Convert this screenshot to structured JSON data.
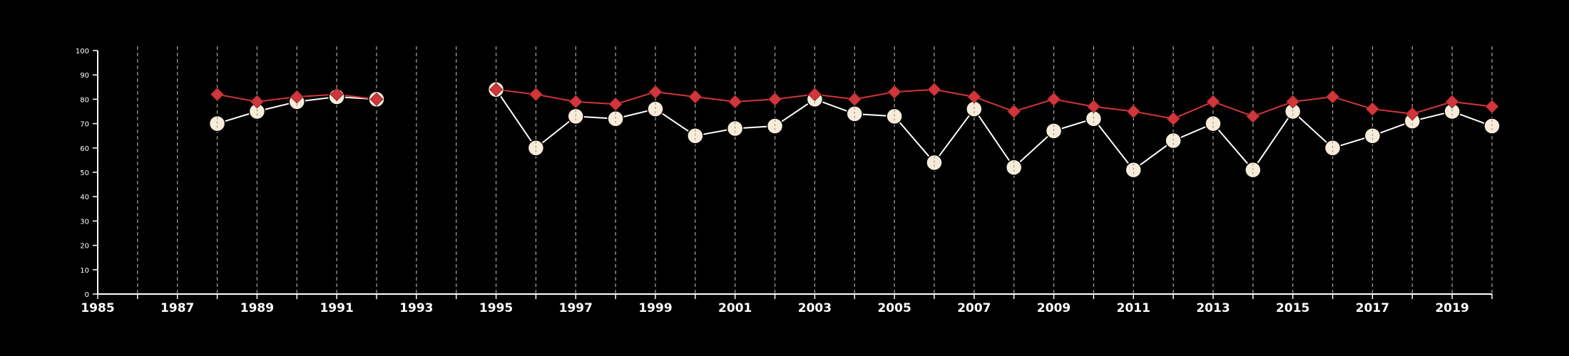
{
  "chart_data": {
    "type": "line",
    "title": "",
    "xlabel": "",
    "ylabel": "",
    "xlim": [
      1985,
      2020
    ],
    "ylim": [
      0,
      100
    ],
    "yticks": [
      0,
      10,
      20,
      30,
      40,
      50,
      60,
      70,
      80,
      90,
      100
    ],
    "xtick_labels": [
      "1985",
      "1987",
      "1989",
      "1991",
      "1993",
      "1995",
      "1997",
      "1999",
      "2001",
      "2003",
      "2005",
      "2007",
      "2009",
      "2011",
      "2013",
      "2015",
      "2017",
      "2019"
    ],
    "grid": "vertical dashed, one per year",
    "legend": "none",
    "x": [
      1988,
      1989,
      1990,
      1991,
      1992,
      1993,
      1994,
      1995,
      1996,
      1997,
      1998,
      1999,
      2000,
      2001,
      2002,
      2003,
      2004,
      2005,
      2006,
      2007,
      2008,
      2009,
      2010,
      2011,
      2012,
      2013,
      2014,
      2015,
      2016,
      2017,
      2018,
      2019,
      2020
    ],
    "series": [
      {
        "marker": "diamond",
        "color": "#d0363b",
        "values": [
          82,
          79,
          81,
          82,
          80,
          null,
          null,
          84,
          82,
          79,
          78,
          83,
          81,
          79,
          80,
          82,
          80,
          83,
          84,
          81,
          75,
          80,
          77,
          75,
          72,
          79,
          73,
          79,
          81,
          76,
          74,
          79,
          77
        ]
      },
      {
        "marker": "circle",
        "color": "#f7ecd9",
        "line_color": "#ffffff",
        "values": [
          70,
          75,
          79,
          81,
          80,
          null,
          null,
          84,
          60,
          73,
          72,
          76,
          65,
          68,
          69,
          80,
          74,
          73,
          54,
          76,
          52,
          67,
          72,
          51,
          63,
          70,
          51,
          75,
          60,
          65,
          71,
          75,
          69
        ]
      }
    ]
  }
}
